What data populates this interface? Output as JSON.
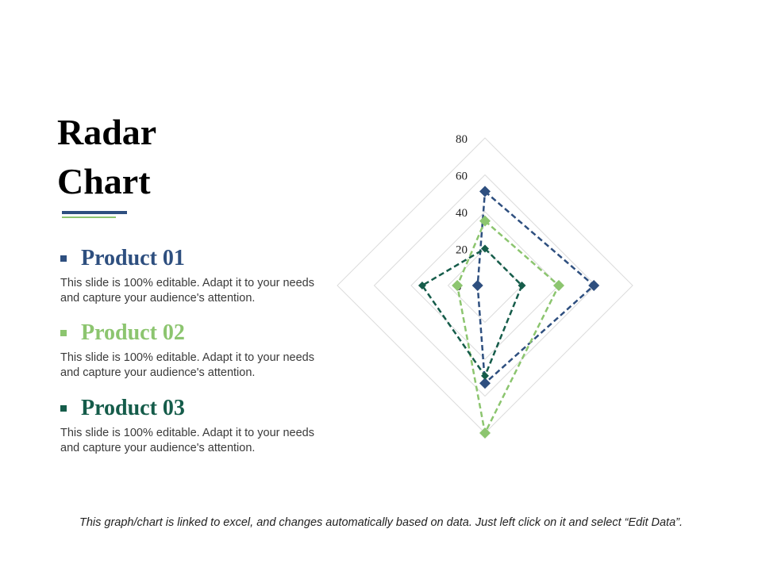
{
  "slide": {
    "title_lines": [
      "Radar",
      "Chart"
    ],
    "products": [
      {
        "name": "Product 01",
        "description": "This slide is 100% editable. Adapt it to your needs and capture your audience's attention.",
        "color": "#2e4f7f"
      },
      {
        "name": "Product 02",
        "description": "This slide is 100% editable. Adapt it to your needs and capture your audience's attention.",
        "color": "#8cc56f"
      },
      {
        "name": "Product 03",
        "description": "This slide is 100% editable. Adapt it to your needs and capture your audience's attention.",
        "color": "#155c4a"
      }
    ],
    "footnote": "This graph/chart is linked to excel, and changes automatically based on data. Just left click on it and select “Edit Data”."
  },
  "chart_data": {
    "type": "radar",
    "axes": [
      "top",
      "right",
      "bottom",
      "left"
    ],
    "rlim": [
      0,
      80
    ],
    "ticks": [
      0,
      20,
      40,
      60,
      80
    ],
    "grid": true,
    "series": [
      {
        "name": "Product 01",
        "values": [
          51,
          59,
          53,
          4
        ],
        "color": "#2e4f7f"
      },
      {
        "name": "Product 02",
        "values": [
          35,
          40,
          80,
          15
        ],
        "color": "#8cc56f"
      },
      {
        "name": "Product 03",
        "values": [
          20,
          20,
          49,
          34
        ],
        "color": "#155c4a"
      }
    ]
  }
}
